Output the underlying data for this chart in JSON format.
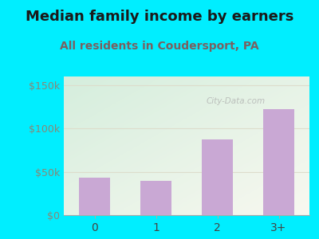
{
  "title": "Median family income by earners",
  "subtitle": "All residents in Coudersport, PA",
  "categories": [
    "0",
    "1",
    "2",
    "3+"
  ],
  "values": [
    43000,
    40000,
    87000,
    122000
  ],
  "bar_color": "#c9a8d4",
  "title_fontsize": 13,
  "subtitle_fontsize": 10,
  "subtitle_color": "#7a6060",
  "title_color": "#1a1a1a",
  "yticks": [
    0,
    50000,
    100000,
    150000
  ],
  "ytick_labels": [
    "$0",
    "$50k",
    "$100k",
    "$150k"
  ],
  "ylim": [
    0,
    160000
  ],
  "bg_outer": "#00eeff",
  "bg_plot_topleft": "#d5eedd",
  "bg_plot_bottomright": "#f8f8f0",
  "watermark": "City-Data.com",
  "grid_color": "#ddddcc",
  "tick_color": "#888877",
  "ytick_fontsize": 9,
  "xtick_fontsize": 10
}
